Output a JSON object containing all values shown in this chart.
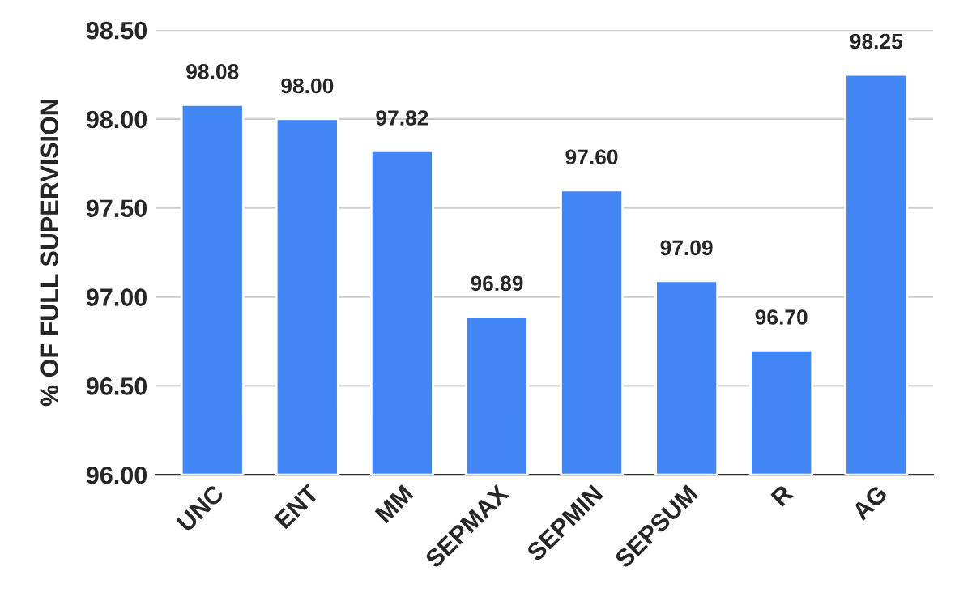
{
  "chart_data": {
    "type": "bar",
    "ylabel": "% OF FULL SUPERVISION",
    "categories": [
      "UNC",
      "ENT",
      "MM",
      "SEPMAX",
      "SEPMIN",
      "SEPSUM",
      "R",
      "AG"
    ],
    "values": [
      98.08,
      98.0,
      97.82,
      96.89,
      97.6,
      97.09,
      96.7,
      98.25
    ],
    "value_labels": [
      "98.08",
      "98.00",
      "97.82",
      "96.89",
      "97.60",
      "97.09",
      "96.70",
      "98.25"
    ],
    "color": "#4285f4",
    "ylim": [
      96,
      98.5
    ],
    "yticks": [
      {
        "value": 96,
        "label": "96.00"
      },
      {
        "value": 96.5,
        "label": "96.50"
      },
      {
        "value": 97,
        "label": "97.00"
      },
      {
        "value": 97.5,
        "label": "97.50"
      },
      {
        "value": 98,
        "label": "98.00"
      },
      {
        "value": 98.5,
        "label": "98.50"
      }
    ],
    "grid": "y",
    "legend": false
  }
}
